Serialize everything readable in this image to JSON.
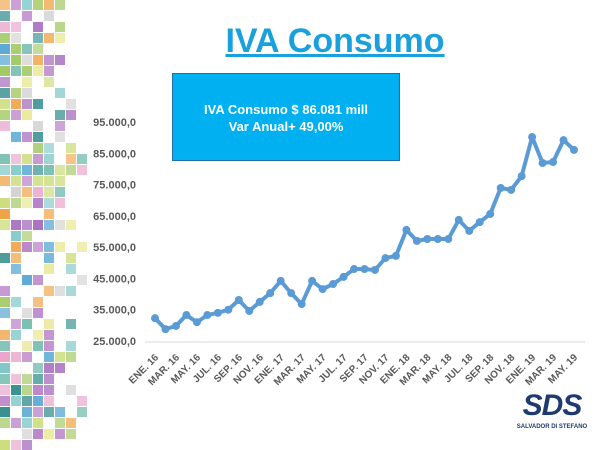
{
  "title": "IVA Consumo",
  "info_box": {
    "line1": "IVA Consumo  $ 86.081 mill",
    "line2": "Var Anual+  49,00%"
  },
  "logo": {
    "text": "SDS",
    "subtitle": "SALVADOR DI STEFANO"
  },
  "chart_data": {
    "type": "line",
    "title": "IVA Consumo",
    "ylim": [
      25000,
      95000
    ],
    "yticks": [
      "25.000,0",
      "35.000,0",
      "45.000,0",
      "55.000,0",
      "65.000,0",
      "75.000,0",
      "85.000,0",
      "95.000,0"
    ],
    "ytick_values": [
      25000,
      35000,
      45000,
      55000,
      65000,
      75000,
      85000,
      95000
    ],
    "xtick_labels": [
      "ENE. 16",
      "MAR. 16",
      "MAY. 16",
      "JUL. 16",
      "SEP. 16",
      "NOV. 16",
      "ENE. 17",
      "MAR. 17",
      "MAY. 17",
      "JUL. 17",
      "SEP. 17",
      "NOV. 17",
      "ENE. 18",
      "MAR. 18",
      "MAY. 18",
      "JUL. 18",
      "SEP. 18",
      "NOV. 18",
      "ENE. 19",
      "MAR. 19",
      "MAY. 19"
    ],
    "series": [
      {
        "name": "IVA Consumo",
        "color": "#5b9bd5",
        "values": [
          32300,
          28800,
          29800,
          33300,
          31000,
          33300,
          34000,
          35000,
          38100,
          34600,
          37500,
          40300,
          44200,
          40300,
          36800,
          44200,
          41600,
          43200,
          45500,
          48000,
          48000,
          47700,
          51500,
          52200,
          60500,
          57000,
          57600,
          57600,
          57600,
          63700,
          60200,
          63000,
          65600,
          73900,
          73300,
          77700,
          90200,
          81900,
          82200,
          89200,
          86081
        ]
      }
    ],
    "grid": false
  }
}
